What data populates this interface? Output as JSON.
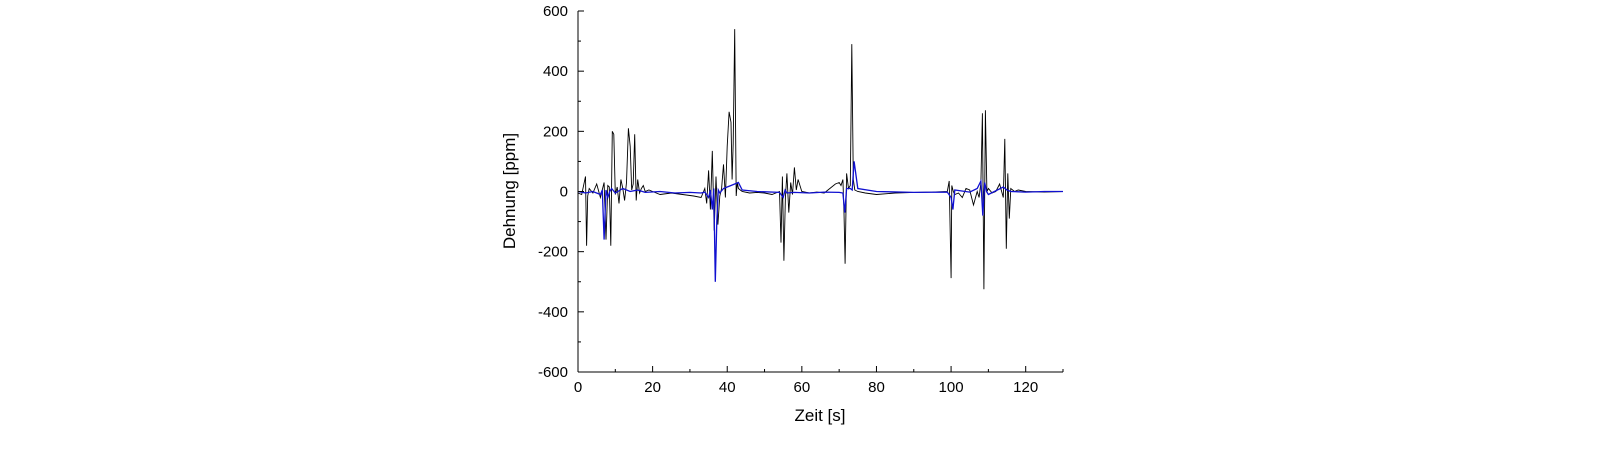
{
  "chart_data": {
    "type": "line",
    "title": "",
    "xlabel": "Zeit [s]",
    "ylabel": "Dehnung [ppm]",
    "xlim": [
      0,
      130
    ],
    "ylim": [
      -600,
      600
    ],
    "xticks": [
      0,
      20,
      40,
      60,
      80,
      100,
      120
    ],
    "yticks": [
      -600,
      -400,
      -200,
      0,
      200,
      400,
      600
    ],
    "xtick_labels": [
      "0",
      "20",
      "40",
      "60",
      "80",
      "100",
      "120"
    ],
    "ytick_labels": [
      "-600",
      "-400",
      "-200",
      "0",
      "200",
      "400",
      "600"
    ],
    "grid": false,
    "legend": "none",
    "series": [
      {
        "color": "#000000",
        "x": [
          0,
          1,
          2,
          2.3,
          2.6,
          3,
          4,
          5,
          6,
          7,
          7.5,
          8,
          8.4,
          8.8,
          9.2,
          9.6,
          10,
          10.5,
          11,
          11.5,
          12,
          12.5,
          13,
          13.5,
          14,
          14.4,
          14.8,
          15.2,
          15.6,
          16,
          16.5,
          17,
          17.5,
          18,
          19,
          20,
          22,
          25,
          28,
          31,
          33,
          34,
          34.5,
          35,
          35.5,
          36,
          36.5,
          37,
          37.5,
          38,
          38.5,
          39,
          39.5,
          40,
          40.5,
          41,
          41.3,
          41.6,
          42,
          42.4,
          42.7,
          43,
          43.5,
          44,
          46,
          48,
          50,
          52,
          54,
          54.4,
          54.8,
          55.2,
          55.6,
          56,
          56.5,
          57,
          57.5,
          58,
          58.5,
          59,
          60,
          62,
          64,
          66,
          68,
          69,
          70,
          70.5,
          71,
          71.3,
          71.6,
          72,
          72.5,
          73,
          73.4,
          73.8,
          74.2,
          75,
          77,
          80,
          85,
          90,
          95,
          99,
          99.5,
          100,
          100.2,
          100.6,
          101,
          102,
          103,
          104,
          105,
          106,
          107,
          107.5,
          108,
          108.4,
          108.8,
          109.2,
          109.6,
          110,
          111,
          112,
          113,
          114,
          114.4,
          114.8,
          115.2,
          115.6,
          116,
          117,
          118,
          120,
          125,
          130
        ],
        "y": [
          -5,
          -10,
          50,
          -180,
          -15,
          10,
          -5,
          25,
          -20,
          30,
          -160,
          20,
          15,
          -180,
          200,
          190,
          -10,
          15,
          -40,
          40,
          10,
          -30,
          30,
          210,
          150,
          5,
          25,
          190,
          -30,
          40,
          -5,
          10,
          20,
          0,
          5,
          0,
          -10,
          -5,
          -10,
          -15,
          -20,
          10,
          -40,
          70,
          -60,
          135,
          -130,
          50,
          -110,
          -15,
          10,
          90,
          -20,
          150,
          265,
          230,
          40,
          160,
          540,
          -15,
          30,
          10,
          5,
          0,
          -5,
          -3,
          -5,
          -10,
          0,
          -170,
          50,
          -230,
          -20,
          60,
          -70,
          30,
          -10,
          80,
          5,
          40,
          0,
          -5,
          -2,
          -5,
          15,
          25,
          30,
          20,
          40,
          -70,
          -240,
          60,
          10,
          20,
          490,
          40,
          5,
          0,
          -5,
          -10,
          -5,
          -3,
          -2,
          0,
          35,
          -288,
          20,
          0,
          -10,
          -5,
          -20,
          10,
          5,
          -45,
          0,
          -20,
          30,
          260,
          -325,
          270,
          0,
          10,
          -5,
          0,
          25,
          -20,
          175,
          -190,
          60,
          -90,
          10,
          0,
          5,
          0,
          -2,
          0
        ]
      },
      {
        "color": "#1010d0",
        "x": [
          0,
          2,
          4,
          6,
          6.5,
          7,
          7.5,
          8,
          8.5,
          9,
          10,
          12,
          14,
          16,
          18,
          22,
          26,
          30,
          33,
          34,
          35,
          35.5,
          36,
          36.4,
          36.8,
          37.2,
          37.6,
          38,
          39,
          40,
          41,
          42,
          43,
          44,
          48,
          54,
          55,
          55.5,
          56,
          58,
          62,
          66,
          70,
          71,
          71.5,
          72,
          73,
          73.5,
          74,
          75,
          80,
          90,
          99,
          100,
          100.5,
          101,
          105,
          107,
          108,
          108.5,
          109,
          109.5,
          110,
          114,
          115,
          116,
          120,
          125,
          130
        ],
        "y": [
          0,
          -5,
          0,
          -10,
          5,
          -160,
          5,
          -20,
          0,
          10,
          -5,
          10,
          0,
          5,
          -3,
          0,
          -5,
          -3,
          -5,
          -2,
          -20,
          5,
          -60,
          10,
          -300,
          -100,
          5,
          -5,
          10,
          15,
          20,
          25,
          30,
          5,
          0,
          -3,
          -20,
          5,
          -5,
          -3,
          -5,
          -2,
          -3,
          -5,
          -70,
          10,
          10,
          5,
          100,
          10,
          0,
          -3,
          -2,
          -20,
          -60,
          5,
          -2,
          10,
          35,
          -80,
          30,
          0,
          -10,
          15,
          5,
          0,
          -2,
          0,
          0
        ]
      }
    ]
  }
}
